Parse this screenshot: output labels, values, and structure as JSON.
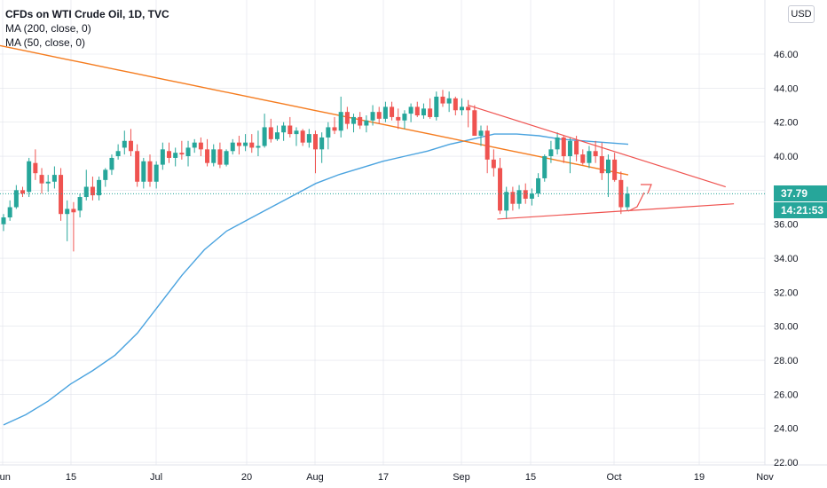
{
  "legend": {
    "title": "CFDs on WTI Crude Oil, 1D, TVC",
    "ma200": "MA (200, close, 0)",
    "ma50": "MA (50, close, 0)"
  },
  "currency_label": "USD",
  "price_label": "37.79",
  "countdown_label": "14:21:53",
  "colors": {
    "up": "#26a69a",
    "down": "#ef5350",
    "ma200": "#f57c1f",
    "ma50": "#4aa3df",
    "trendline": "#ef5350",
    "price_line": "#26a69a",
    "axis_text": "#131722",
    "grid": "#e0e3eb"
  },
  "chart_data": {
    "type": "candlestick",
    "title": "CFDs on WTI Crude Oil, 1D, TVC",
    "y_ticks": [
      "22.00",
      "24.00",
      "26.00",
      "28.00",
      "30.00",
      "32.00",
      "34.00",
      "36.00",
      "38.00",
      "40.00",
      "42.00",
      "44.00",
      "46.00"
    ],
    "x_ticks": [
      "Jun",
      "15",
      "Jul",
      "20",
      "Aug",
      "17",
      "Sep",
      "15",
      "Oct",
      "19",
      "Nov"
    ],
    "ylim": [
      22,
      48
    ],
    "last_price": 37.79,
    "candles": [
      [
        36.0,
        36.6,
        35.6,
        36.4
      ],
      [
        36.4,
        37.4,
        36.2,
        37.0
      ],
      [
        37.0,
        38.3,
        36.9,
        38.0
      ],
      [
        38.0,
        38.2,
        37.6,
        37.8
      ],
      [
        37.9,
        39.9,
        37.6,
        39.7
      ],
      [
        39.6,
        40.4,
        38.6,
        39.0
      ],
      [
        38.9,
        39.3,
        37.8,
        38.4
      ],
      [
        38.4,
        38.9,
        37.9,
        38.5
      ],
      [
        38.5,
        39.4,
        38.1,
        38.9
      ],
      [
        38.9,
        39.3,
        36.2,
        36.6
      ],
      [
        36.6,
        37.4,
        35.0,
        36.9
      ],
      [
        36.9,
        37.3,
        34.4,
        36.7
      ],
      [
        36.8,
        37.8,
        36.4,
        37.6
      ],
      [
        37.6,
        39.2,
        37.4,
        38.2
      ],
      [
        38.2,
        38.8,
        37.4,
        37.7
      ],
      [
        37.7,
        38.8,
        37.4,
        38.6
      ],
      [
        38.6,
        39.3,
        38.2,
        39.2
      ],
      [
        39.2,
        40.1,
        38.9,
        39.9
      ],
      [
        40.0,
        40.7,
        39.8,
        40.3
      ],
      [
        40.5,
        41.5,
        40.1,
        40.9
      ],
      [
        40.9,
        41.6,
        40.0,
        40.3
      ],
      [
        40.3,
        40.7,
        38.2,
        38.5
      ],
      [
        38.5,
        39.9,
        38.1,
        39.7
      ],
      [
        39.7,
        40.1,
        38.2,
        38.5
      ],
      [
        38.5,
        39.7,
        38.1,
        39.5
      ],
      [
        39.5,
        40.8,
        39.2,
        40.4
      ],
      [
        40.3,
        40.8,
        39.6,
        39.9
      ],
      [
        39.9,
        40.5,
        39.4,
        40.2
      ],
      [
        40.2,
        40.9,
        39.8,
        40.1
      ],
      [
        40.0,
        40.9,
        39.4,
        40.5
      ],
      [
        40.5,
        41.0,
        40.2,
        40.8
      ],
      [
        40.8,
        41.1,
        40.0,
        40.4
      ],
      [
        40.4,
        41.0,
        39.4,
        39.6
      ],
      [
        39.6,
        40.7,
        39.4,
        40.4
      ],
      [
        40.4,
        40.8,
        39.3,
        39.5
      ],
      [
        39.5,
        40.4,
        39.4,
        40.3
      ],
      [
        40.3,
        41.0,
        40.1,
        40.8
      ],
      [
        40.8,
        41.2,
        40.1,
        40.6
      ],
      [
        40.6,
        41.3,
        40.3,
        40.8
      ],
      [
        40.8,
        41.3,
        40.2,
        40.5
      ],
      [
        40.5,
        41.5,
        40.0,
        40.6
      ],
      [
        40.6,
        42.5,
        40.5,
        41.7
      ],
      [
        41.7,
        42.2,
        40.8,
        41.0
      ],
      [
        41.0,
        41.8,
        40.9,
        41.4
      ],
      [
        41.4,
        42.0,
        40.9,
        41.8
      ],
      [
        41.8,
        42.3,
        41.1,
        41.3
      ],
      [
        41.3,
        41.7,
        40.6,
        41.5
      ],
      [
        41.5,
        41.6,
        40.6,
        40.8
      ],
      [
        40.8,
        41.6,
        40.5,
        41.3
      ],
      [
        41.3,
        41.5,
        39.0,
        40.4
      ],
      [
        40.4,
        41.4,
        39.6,
        41.1
      ],
      [
        41.1,
        42.0,
        40.4,
        41.7
      ],
      [
        41.7,
        42.3,
        41.3,
        41.5
      ],
      [
        41.5,
        43.5,
        41.1,
        42.6
      ],
      [
        42.6,
        42.9,
        41.6,
        41.9
      ],
      [
        41.9,
        42.5,
        41.4,
        42.3
      ],
      [
        42.3,
        42.6,
        41.6,
        41.8
      ],
      [
        41.8,
        42.4,
        41.4,
        42.1
      ],
      [
        42.1,
        43.0,
        41.8,
        42.6
      ],
      [
        42.6,
        42.9,
        41.9,
        42.2
      ],
      [
        42.2,
        43.2,
        42.0,
        42.9
      ],
      [
        42.9,
        43.2,
        42.1,
        42.3
      ],
      [
        42.3,
        42.8,
        41.6,
        42.1
      ],
      [
        42.1,
        42.7,
        41.6,
        42.5
      ],
      [
        42.5,
        43.1,
        42.0,
        42.9
      ],
      [
        42.9,
        43.2,
        42.3,
        42.4
      ],
      [
        42.4,
        43.1,
        42.2,
        42.8
      ],
      [
        42.8,
        43.4,
        42.2,
        42.3
      ],
      [
        42.3,
        43.8,
        42.1,
        43.5
      ],
      [
        43.5,
        43.9,
        42.9,
        43.1
      ],
      [
        43.1,
        43.8,
        42.6,
        43.4
      ],
      [
        43.4,
        43.5,
        42.4,
        42.7
      ],
      [
        42.7,
        43.4,
        42.4,
        42.9
      ],
      [
        42.9,
        43.3,
        41.7,
        42.7
      ],
      [
        42.7,
        43.0,
        41.4,
        41.2
      ],
      [
        41.2,
        41.8,
        40.6,
        41.5
      ],
      [
        41.5,
        41.8,
        39.0,
        39.8
      ],
      [
        39.8,
        40.4,
        38.8,
        39.3
      ],
      [
        39.3,
        39.9,
        36.6,
        36.8
      ],
      [
        36.8,
        38.2,
        36.3,
        37.9
      ],
      [
        37.9,
        38.2,
        36.8,
        37.2
      ],
      [
        37.2,
        38.3,
        36.9,
        38.0
      ],
      [
        38.0,
        38.4,
        37.2,
        37.5
      ],
      [
        37.5,
        38.1,
        37.1,
        37.8
      ],
      [
        37.8,
        39.0,
        37.6,
        38.7
      ],
      [
        38.7,
        40.1,
        38.5,
        40.0
      ],
      [
        40.0,
        40.9,
        39.6,
        40.4
      ],
      [
        40.4,
        41.4,
        40.1,
        41.1
      ],
      [
        41.1,
        41.2,
        39.6,
        40.0
      ],
      [
        40.0,
        41.1,
        39.0,
        40.9
      ],
      [
        40.9,
        41.2,
        39.7,
        40.1
      ],
      [
        40.1,
        40.4,
        39.5,
        39.6
      ],
      [
        39.6,
        40.6,
        39.3,
        40.3
      ],
      [
        40.3,
        40.9,
        39.6,
        40.0
      ],
      [
        40.0,
        40.8,
        38.6,
        39.0
      ],
      [
        39.0,
        40.1,
        37.6,
        39.8
      ],
      [
        39.8,
        40.2,
        38.5,
        38.6
      ],
      [
        38.6,
        39.1,
        36.6,
        37.0
      ],
      [
        37.0,
        38.2,
        36.8,
        37.8
      ]
    ],
    "ma200": [
      46.5,
      46.3,
      46.1,
      45.9,
      45.7,
      45.5,
      45.3,
      45.1,
      44.9,
      44.7,
      44.5,
      44.3,
      44.1,
      43.9,
      43.7,
      43.5,
      43.3,
      43.1,
      42.9,
      42.7,
      42.5,
      42.3,
      42.1,
      41.9,
      41.7,
      41.5,
      41.3,
      41.1,
      40.9,
      40.7,
      40.5,
      40.3,
      40.1,
      39.9,
      39.7,
      39.5,
      39.3,
      39.1,
      38.9
    ],
    "ma50": [
      24.2,
      24.8,
      25.6,
      26.6,
      27.4,
      28.3,
      29.6,
      31.3,
      33.0,
      34.5,
      35.6,
      36.3,
      37.0,
      37.7,
      38.4,
      38.9,
      39.3,
      39.7,
      40.0,
      40.3,
      40.7,
      41.0,
      41.3,
      41.3,
      41.2,
      41.0,
      40.9,
      40.8,
      40.7
    ],
    "trendlines": [
      {
        "from": [
          0.5632,
          43.0
        ],
        "to": [
          0.9,
          38.2
        ]
      },
      {
        "from": [
          0.6014,
          36.3
        ],
        "to": [
          0.9108,
          37.2
        ]
      }
    ]
  }
}
